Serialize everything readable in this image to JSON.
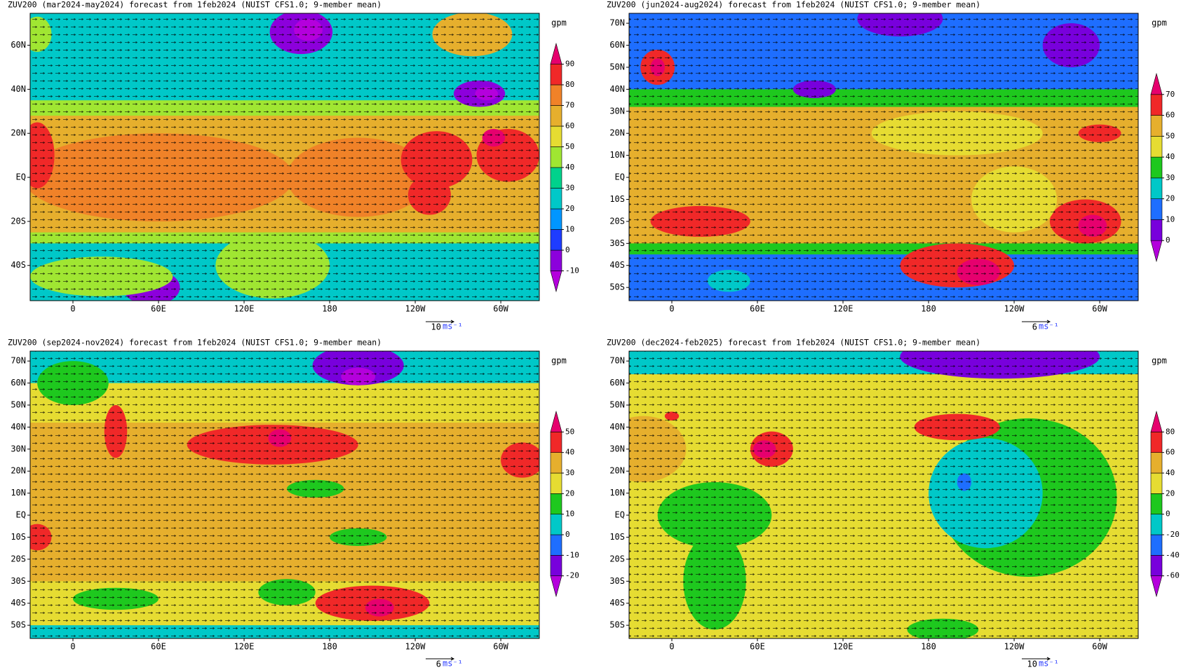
{
  "panels": [
    {
      "title": "ZUV200 (mar2024-may2024) forecast from 1feb2024 (NUIST CFS1.0; 9-member mean)",
      "unit": "gpm",
      "xlim": [
        -30,
        327
      ],
      "ylim": [
        -56,
        74.5
      ],
      "xticks": [
        0,
        {
          "value": 60,
          "label": "60E"
        },
        {
          "value": 120,
          "label": "120E"
        },
        180,
        {
          "value": 240,
          "label": "120W"
        },
        {
          "value": 300,
          "label": "60W"
        }
      ],
      "yticks": [
        {
          "value": 60,
          "label": "60N"
        },
        {
          "value": 40,
          "label": "40N"
        },
        {
          "value": 20,
          "label": "20N"
        },
        {
          "value": 0,
          "label": "EQ"
        },
        {
          "value": -20,
          "label": "20S"
        },
        {
          "value": -40,
          "label": "40S"
        }
      ],
      "colorbar": {
        "ticks": [
          -10,
          0,
          10,
          20,
          30,
          40,
          50,
          60,
          70,
          80,
          90
        ],
        "colors": [
          "#b400dc",
          "#8c00dc",
          "#1e3cff",
          "#0096ff",
          "#00c8c8",
          "#00d28c",
          "#a0e632",
          "#e6dc32",
          "#e6af2d",
          "#f08228",
          "#f02828",
          "#e6006e"
        ]
      },
      "vector_scale": 10,
      "vector_unit": "ms⁻¹"
    },
    {
      "title": "ZUV200 (jun2024-aug2024) forecast from 1feb2024 (NUIST CFS1.0; 9-member mean)",
      "unit": "gpm",
      "xlim": [
        -30,
        327
      ],
      "ylim": [
        -56,
        74.5
      ],
      "xticks": [
        0,
        {
          "value": 60,
          "label": "60E"
        },
        {
          "value": 120,
          "label": "120E"
        },
        180,
        {
          "value": 240,
          "label": "120W"
        },
        {
          "value": 300,
          "label": "60W"
        }
      ],
      "yticks": [
        {
          "value": 70,
          "label": "70N"
        },
        {
          "value": 60,
          "label": "60N"
        },
        {
          "value": 50,
          "label": "50N"
        },
        {
          "value": 40,
          "label": "40N"
        },
        {
          "value": 30,
          "label": "30N"
        },
        {
          "value": 20,
          "label": "20N"
        },
        {
          "value": 10,
          "label": "10N"
        },
        {
          "value": 0,
          "label": "EQ"
        },
        {
          "value": -10,
          "label": "10S"
        },
        {
          "value": -20,
          "label": "20S"
        },
        {
          "value": -30,
          "label": "30S"
        },
        {
          "value": -40,
          "label": "40S"
        },
        {
          "value": -50,
          "label": "50S"
        }
      ],
      "colorbar": {
        "ticks": [
          0,
          10,
          20,
          30,
          40,
          50,
          60,
          70
        ],
        "colors": [
          "#b400dc",
          "#7800dc",
          "#1e6eff",
          "#00c8c8",
          "#1ec81e",
          "#e6dc32",
          "#e6af2d",
          "#f02828",
          "#e6006e"
        ]
      },
      "vector_scale": 6,
      "vector_unit": "ms⁻¹"
    },
    {
      "title": "ZUV200 (sep2024-nov2024) forecast from 1feb2024 (NUIST CFS1.0; 9-member mean)",
      "unit": "gpm",
      "xlim": [
        -30,
        327
      ],
      "ylim": [
        -56,
        74.5
      ],
      "xticks": [
        0,
        {
          "value": 60,
          "label": "60E"
        },
        {
          "value": 120,
          "label": "120E"
        },
        180,
        {
          "value": 240,
          "label": "120W"
        },
        {
          "value": 300,
          "label": "60W"
        }
      ],
      "yticks": [
        {
          "value": 70,
          "label": "70N"
        },
        {
          "value": 60,
          "label": "60N"
        },
        {
          "value": 50,
          "label": "50N"
        },
        {
          "value": 40,
          "label": "40N"
        },
        {
          "value": 30,
          "label": "30N"
        },
        {
          "value": 20,
          "label": "20N"
        },
        {
          "value": 10,
          "label": "10N"
        },
        {
          "value": 0,
          "label": "EQ"
        },
        {
          "value": -10,
          "label": "10S"
        },
        {
          "value": -20,
          "label": "20S"
        },
        {
          "value": -30,
          "label": "30S"
        },
        {
          "value": -40,
          "label": "40S"
        },
        {
          "value": -50,
          "label": "50S"
        }
      ],
      "colorbar": {
        "ticks": [
          -20,
          -10,
          0,
          10,
          20,
          30,
          40,
          50
        ],
        "colors": [
          "#b400dc",
          "#7800dc",
          "#1e6eff",
          "#00c8c8",
          "#1ec81e",
          "#e6dc32",
          "#e6af2d",
          "#f02828",
          "#e6006e"
        ]
      },
      "vector_scale": 6,
      "vector_unit": "ms⁻¹"
    },
    {
      "title": "ZUV200 (dec2024-feb2025) forecast from 1feb2024 (NUIST CFS1.0; 9-member mean)",
      "unit": "gpm",
      "xlim": [
        -30,
        327
      ],
      "ylim": [
        -56,
        74.5
      ],
      "xticks": [
        0,
        {
          "value": 60,
          "label": "60E"
        },
        {
          "value": 120,
          "label": "120E"
        },
        180,
        {
          "value": 240,
          "label": "120W"
        },
        {
          "value": 300,
          "label": "60W"
        }
      ],
      "yticks": [
        {
          "value": 70,
          "label": "70N"
        },
        {
          "value": 60,
          "label": "60N"
        },
        {
          "value": 50,
          "label": "50N"
        },
        {
          "value": 40,
          "label": "40N"
        },
        {
          "value": 30,
          "label": "30N"
        },
        {
          "value": 20,
          "label": "20N"
        },
        {
          "value": 10,
          "label": "10N"
        },
        {
          "value": 0,
          "label": "EQ"
        },
        {
          "value": -10,
          "label": "10S"
        },
        {
          "value": -20,
          "label": "20S"
        },
        {
          "value": -30,
          "label": "30S"
        },
        {
          "value": -40,
          "label": "40S"
        },
        {
          "value": -50,
          "label": "50S"
        }
      ],
      "colorbar": {
        "ticks": [
          -60,
          -40,
          -20,
          0,
          20,
          40,
          60,
          80
        ],
        "colors": [
          "#b400dc",
          "#7800dc",
          "#1e6eff",
          "#00c8c8",
          "#1ec81e",
          "#e6dc32",
          "#e6af2d",
          "#f02828",
          "#e6006e"
        ]
      },
      "vector_scale": 10,
      "vector_unit": "ms⁻¹"
    }
  ]
}
